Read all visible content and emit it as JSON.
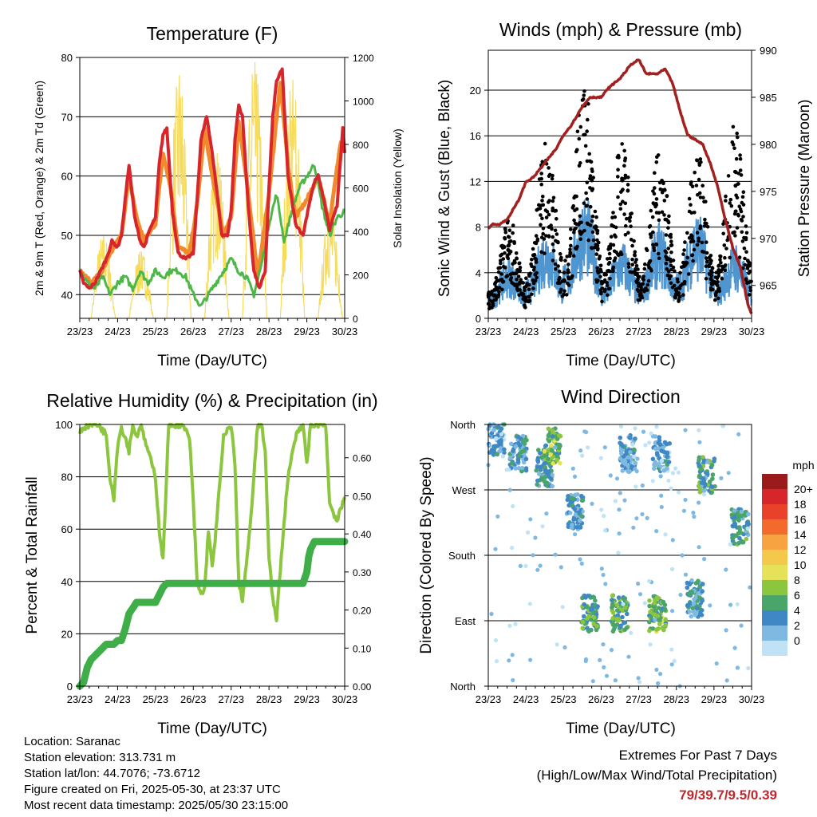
{
  "chart_data": [
    {
      "type": "line",
      "title": "Temperature (F)",
      "xlabel": "Time (Day/UTC)",
      "ylabel": "2m & 9m T (Red, Orange) & 2m Td (Green)",
      "y2label": "Solar Insolation (Yellow)",
      "x_ticks": [
        "23/23",
        "24/23",
        "25/23",
        "26/23",
        "27/23",
        "28/23",
        "29/23",
        "30/23"
      ],
      "ylim": [
        36,
        80
      ],
      "y_ticks": [
        40,
        50,
        60,
        70,
        80
      ],
      "y2lim": [
        0,
        1200
      ],
      "y2_ticks": [
        0,
        200,
        400,
        600,
        800,
        1000,
        1200
      ],
      "gridlines": [
        40,
        50,
        60,
        70
      ],
      "colors": {
        "t2m": "#d7262b",
        "t9m": "#f08a2c",
        "td": "#4db848",
        "solar": "#f7dc5b"
      },
      "series": [
        {
          "name": "2m T",
          "x": [
            0,
            0.1,
            0.25,
            0.4,
            0.55,
            0.7,
            0.85,
            1.0,
            1.1,
            1.2,
            1.3,
            1.45,
            1.6,
            1.7,
            1.85,
            2.0,
            2.1,
            2.2,
            2.3,
            2.45,
            2.6,
            2.8,
            3.0,
            3.1,
            3.2,
            3.35,
            3.5,
            3.65,
            3.75,
            3.9,
            4.0,
            4.1,
            4.2,
            4.3,
            4.45,
            4.6,
            4.75,
            4.9,
            5.0,
            5.1,
            5.2,
            5.35,
            5.5,
            5.7,
            5.9,
            6.05,
            6.2,
            6.3,
            6.45,
            6.6,
            6.8,
            6.95,
            7.0
          ],
          "values": [
            44,
            42,
            41,
            42,
            44,
            46,
            49,
            48,
            50,
            56,
            62,
            53,
            49,
            48,
            51,
            53,
            62,
            67,
            68,
            54,
            47,
            46,
            47,
            56,
            66,
            70,
            64,
            56,
            50,
            50,
            54,
            66,
            72,
            70,
            55,
            44,
            41,
            44,
            58,
            70,
            76,
            78,
            60,
            52,
            50,
            55,
            59,
            60,
            56,
            51,
            55,
            68,
            64
          ]
        },
        {
          "name": "9m T",
          "x": [
            0,
            0.3,
            0.6,
            0.9,
            1.1,
            1.3,
            1.5,
            1.7,
            2.0,
            2.2,
            2.4,
            2.6,
            2.9,
            3.1,
            3.3,
            3.5,
            3.8,
            4.0,
            4.2,
            4.4,
            4.7,
            5.0,
            5.3,
            5.5,
            5.7,
            6.0,
            6.3,
            6.6,
            6.9,
            7.0
          ],
          "values": [
            44,
            42,
            44,
            48,
            50,
            60,
            53,
            49,
            52,
            64,
            58,
            48,
            47,
            55,
            68,
            60,
            50,
            53,
            69,
            60,
            43,
            57,
            76,
            62,
            53,
            56,
            60,
            52,
            66,
            64
          ]
        },
        {
          "name": "2m Td",
          "x": [
            0,
            0.2,
            0.4,
            0.6,
            0.8,
            1.0,
            1.2,
            1.4,
            1.6,
            1.8,
            2.0,
            2.2,
            2.4,
            2.6,
            2.8,
            3.0,
            3.2,
            3.4,
            3.6,
            3.8,
            4.0,
            4.2,
            4.4,
            4.6,
            4.8,
            5.0,
            5.2,
            5.4,
            5.6,
            5.8,
            6.0,
            6.2,
            6.4,
            6.6,
            6.8,
            7.0
          ],
          "values": [
            44,
            42,
            41,
            43,
            40,
            42,
            43,
            41,
            44,
            42,
            44,
            43,
            44,
            44,
            43,
            40,
            38,
            40,
            42,
            44,
            46,
            44,
            43,
            40,
            45,
            52,
            57,
            49,
            54,
            58,
            60,
            62,
            55,
            50,
            53,
            54
          ]
        },
        {
          "name": "Solar Insolation",
          "axis": "y2",
          "peaks": [
            380,
            310,
            1120,
            760,
            1180,
            1100,
            500,
            1050
          ]
        }
      ]
    },
    {
      "type": "scatter",
      "title": "Winds (mph) & Pressure (mb)",
      "xlabel": "Time (Day/UTC)",
      "ylabel": "Sonic Wind & Gust (Blue, Black)",
      "y2label": "Station Pressure (Maroon)",
      "x_ticks": [
        "23/23",
        "24/23",
        "25/23",
        "26/23",
        "27/23",
        "28/23",
        "29/23",
        "30/23"
      ],
      "ylim": [
        0,
        23.5
      ],
      "y_ticks": [
        0,
        4,
        8,
        12,
        16,
        20
      ],
      "y2lim": [
        961.5,
        990
      ],
      "y2_ticks": [
        965,
        970,
        975,
        980,
        985,
        990
      ],
      "gridlines": [
        4,
        8,
        12,
        16,
        20
      ],
      "colors": {
        "wind": "#4f95d0",
        "gust": "#000000",
        "pressure": "#a32020"
      },
      "series": [
        {
          "name": "Sonic Wind",
          "daily_peaks": [
            4,
            6,
            8,
            5,
            6,
            7,
            5,
            6
          ]
        },
        {
          "name": "Gust",
          "daily_peaks": [
            9,
            16,
            20.7,
            16,
            15,
            15,
            17,
            16
          ]
        },
        {
          "name": "Station Pressure",
          "axis": "y2",
          "x": [
            0,
            0.1,
            0.3,
            0.5,
            0.8,
            1.0,
            1.2,
            1.5,
            1.8,
            2.0,
            2.2,
            2.5,
            2.7,
            3.0,
            3.2,
            3.5,
            3.8,
            4.0,
            4.2,
            4.5,
            4.7,
            4.9,
            5.1,
            5.3,
            5.5,
            5.7,
            5.9,
            6.1,
            6.3,
            6.5,
            6.7,
            6.9,
            7.0
          ],
          "values": [
            971,
            971.5,
            971.5,
            972,
            974,
            976,
            976.5,
            978,
            979.5,
            981,
            982,
            984,
            985,
            985,
            986,
            987,
            988.5,
            989,
            987.5,
            987.5,
            988,
            986.5,
            983.5,
            981,
            980.5,
            980,
            978,
            975.5,
            972,
            969,
            967,
            963,
            962
          ]
        }
      ]
    },
    {
      "type": "line",
      "title": "Relative Humidity (%) & Precipitation (in)",
      "xlabel": "Time (Day/UTC)",
      "ylabel": "Percent & Total Rainfall",
      "x_ticks": [
        "23/23",
        "24/23",
        "25/23",
        "26/23",
        "27/23",
        "28/23",
        "29/23",
        "30/23"
      ],
      "ylim": [
        0,
        100
      ],
      "y_ticks": [
        0,
        20,
        40,
        60,
        80,
        100
      ],
      "y2lim": [
        0,
        0.6875
      ],
      "y2_ticks": [
        "0.00",
        "0.10",
        "0.20",
        "0.30",
        "0.40",
        "0.50",
        "0.60"
      ],
      "gridlines": [
        20,
        40,
        60,
        80
      ],
      "colors": {
        "rh": "#8cc63f",
        "precip": "#3fae49"
      },
      "series": [
        {
          "name": "Relative Humidity",
          "x": [
            0,
            0.1,
            0.3,
            0.5,
            0.7,
            0.8,
            0.9,
            1.0,
            1.1,
            1.2,
            1.3,
            1.4,
            1.5,
            1.6,
            1.8,
            2.0,
            2.1,
            2.2,
            2.35,
            2.5,
            2.7,
            2.9,
            3.0,
            3.1,
            3.2,
            3.3,
            3.4,
            3.5,
            3.6,
            3.8,
            4.0,
            4.1,
            4.2,
            4.3,
            4.5,
            4.7,
            4.8,
            4.9,
            5.0,
            5.1,
            5.2,
            5.3,
            5.5,
            5.7,
            5.9,
            6.0,
            6.1,
            6.3,
            6.5,
            6.6,
            6.8,
            7.0
          ],
          "values": [
            97,
            99,
            100,
            100,
            96,
            80,
            72,
            92,
            99,
            95,
            90,
            100,
            95,
            100,
            90,
            80,
            60,
            48,
            100,
            100,
            100,
            95,
            70,
            40,
            35,
            37,
            60,
            45,
            60,
            95,
            100,
            85,
            40,
            33,
            60,
            100,
            100,
            90,
            50,
            33,
            25,
            45,
            80,
            95,
            100,
            85,
            100,
            100,
            100,
            70,
            63,
            72
          ]
        },
        {
          "name": "Total Rainfall",
          "axis": "y2",
          "x": [
            0,
            0.1,
            0.15,
            0.2,
            0.3,
            0.4,
            0.5,
            0.6,
            0.7,
            0.8,
            0.9,
            1.0,
            1.1,
            1.2,
            1.3,
            1.5,
            1.7,
            1.9,
            2.0,
            2.1,
            2.2,
            2.3,
            2.5,
            3.0,
            3.5,
            4.0,
            4.5,
            5.0,
            5.5,
            5.9,
            6.0,
            6.05,
            6.1,
            6.2,
            6.3,
            6.5,
            7.0
          ],
          "values": [
            0,
            0.01,
            0.03,
            0.05,
            0.07,
            0.08,
            0.09,
            0.1,
            0.11,
            0.11,
            0.11,
            0.12,
            0.12,
            0.15,
            0.19,
            0.22,
            0.22,
            0.22,
            0.22,
            0.24,
            0.26,
            0.27,
            0.27,
            0.27,
            0.27,
            0.27,
            0.27,
            0.27,
            0.27,
            0.27,
            0.3,
            0.34,
            0.36,
            0.38,
            0.38,
            0.38,
            0.38
          ]
        }
      ]
    },
    {
      "type": "scatter",
      "title": "Wind Direction",
      "xlabel": "Time (Day/UTC)",
      "ylabel": "Direction (Colored By Speed)",
      "x_ticks": [
        "23/23",
        "24/23",
        "25/23",
        "26/23",
        "27/23",
        "28/23",
        "29/23",
        "30/23"
      ],
      "y_ticks": [
        "North",
        "East",
        "South",
        "West",
        "North"
      ],
      "ylim": [
        0,
        360
      ],
      "gridlines": [
        90,
        180,
        270
      ],
      "colorbar": {
        "title": "mph",
        "labels": [
          "20+",
          "18",
          "16",
          "14",
          "12",
          "10",
          "8",
          "6",
          "4",
          "2",
          "0"
        ],
        "colors": [
          "#9b1b1b",
          "#d7262b",
          "#e8432a",
          "#f26a2c",
          "#f8a341",
          "#f4c84a",
          "#e5e259",
          "#8cc63f",
          "#4aa56b",
          "#3f88c5",
          "#7fb9e2",
          "#bfe3f5"
        ]
      },
      "clusters": [
        {
          "day": 0.2,
          "direction": 340,
          "speed": 3
        },
        {
          "day": 0.8,
          "direction": 320,
          "speed": 4
        },
        {
          "day": 1.5,
          "direction": 300,
          "speed": 4
        },
        {
          "day": 1.7,
          "direction": 330,
          "speed": 7
        },
        {
          "day": 2.3,
          "direction": 240,
          "speed": 3
        },
        {
          "day": 2.7,
          "direction": 100,
          "speed": 6
        },
        {
          "day": 3.5,
          "direction": 100,
          "speed": 6
        },
        {
          "day": 3.7,
          "direction": 320,
          "speed": 3
        },
        {
          "day": 4.5,
          "direction": 100,
          "speed": 7
        },
        {
          "day": 4.6,
          "direction": 320,
          "speed": 3
        },
        {
          "day": 5.5,
          "direction": 120,
          "speed": 4
        },
        {
          "day": 5.8,
          "direction": 290,
          "speed": 5
        },
        {
          "day": 6.7,
          "direction": 220,
          "speed": 5
        }
      ]
    }
  ],
  "info": {
    "location": "Location: Saranac",
    "elevation": "Station elevation: 313.731 m",
    "latlon": "Station lat/lon: 44.7076; -73.6712",
    "created": "Figure created on Fri, 2025-05-30, at 23:37 UTC",
    "recent": "Most recent data timestamp: 2025/05/30 23:15:00"
  },
  "extremes": {
    "title": "Extremes For Past 7 Days",
    "subtitle": "(High/Low/Max Wind/Total Precipitation)",
    "value": "79/39.7/9.5/0.39"
  }
}
